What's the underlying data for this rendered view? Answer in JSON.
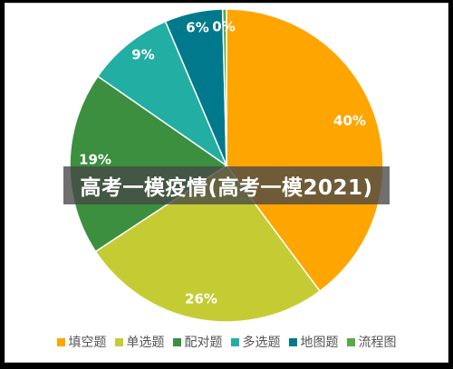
{
  "overlay_title": "高考一模疫情(高考一模2021)",
  "chart_data": {
    "type": "pie",
    "title": "",
    "legend_position": "bottom",
    "slices": [
      {
        "name": "填空题",
        "label": "40%",
        "value": 40,
        "color": "#FFA500"
      },
      {
        "name": "单选题",
        "label": "26%",
        "value": 26,
        "color": "#C5CC33"
      },
      {
        "name": "配对题",
        "label": "19%",
        "value": 19,
        "color": "#3B8F3E"
      },
      {
        "name": "多选题",
        "label": "9%",
        "value": 9,
        "color": "#22AEA3"
      },
      {
        "name": "地图题",
        "label": "6%",
        "value": 6,
        "color": "#00798C"
      },
      {
        "name": "流程图",
        "label": "0%",
        "value": 0.4,
        "color": "#5AA84A"
      }
    ]
  }
}
